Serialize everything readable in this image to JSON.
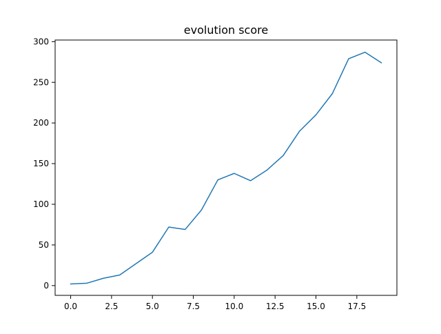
{
  "chart_data": {
    "type": "line",
    "title": "evolution score",
    "xlabel": "",
    "ylabel": "",
    "xlim": [
      -0.95,
      19.95
    ],
    "ylim": [
      -12,
      302
    ],
    "grid": false,
    "legend": "none",
    "x_ticks": [
      0.0,
      2.5,
      5.0,
      7.5,
      10.0,
      12.5,
      15.0,
      17.5
    ],
    "x_tick_labels": [
      "0.0",
      "2.5",
      "5.0",
      "7.5",
      "10.0",
      "12.5",
      "15.0",
      "17.5"
    ],
    "y_ticks": [
      0,
      50,
      100,
      150,
      200,
      250,
      300
    ],
    "y_tick_labels": [
      "0",
      "50",
      "100",
      "150",
      "200",
      "250",
      "300"
    ],
    "series": [
      {
        "color": "#1f77b4",
        "x": [
          0,
          1,
          2,
          3,
          4,
          5,
          6,
          7,
          8,
          9,
          10,
          11,
          12,
          13,
          14,
          15,
          16,
          17,
          18,
          19
        ],
        "y": [
          2,
          3,
          9,
          13,
          27,
          41,
          72,
          69,
          93,
          130,
          138,
          129,
          142,
          160,
          190,
          210,
          236,
          279,
          287,
          274
        ]
      }
    ]
  }
}
